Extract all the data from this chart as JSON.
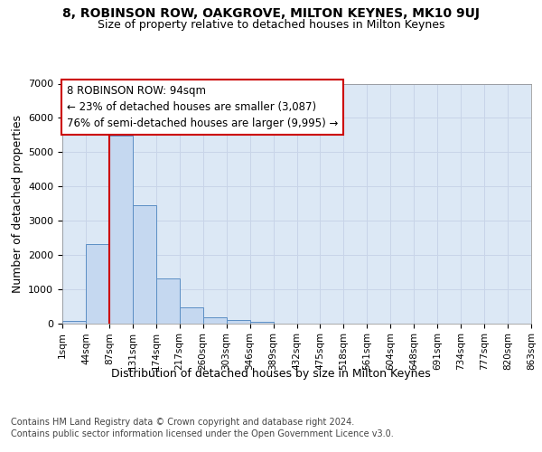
{
  "title": "8, ROBINSON ROW, OAKGROVE, MILTON KEYNES, MK10 9UJ",
  "subtitle": "Size of property relative to detached houses in Milton Keynes",
  "xlabel": "Distribution of detached houses by size in Milton Keynes",
  "ylabel": "Number of detached properties",
  "footer_line1": "Contains HM Land Registry data © Crown copyright and database right 2024.",
  "footer_line2": "Contains public sector information licensed under the Open Government Licence v3.0.",
  "annotation_title": "8 ROBINSON ROW: 94sqm",
  "annotation_line2": "← 23% of detached houses are smaller (3,087)",
  "annotation_line3": "76% of semi-detached houses are larger (9,995) →",
  "bar_values": [
    75,
    2300,
    5480,
    3450,
    1320,
    470,
    165,
    80,
    50,
    0,
    0,
    0,
    0,
    0,
    0,
    0,
    0,
    0,
    0,
    0
  ],
  "bar_color": "#c5d8f0",
  "bar_edge_color": "#5b8ec4",
  "bin_labels": [
    "1sqm",
    "44sqm",
    "87sqm",
    "131sqm",
    "174sqm",
    "217sqm",
    "260sqm",
    "303sqm",
    "346sqm",
    "389sqm",
    "432sqm",
    "475sqm",
    "518sqm",
    "561sqm",
    "604sqm",
    "648sqm",
    "691sqm",
    "734sqm",
    "777sqm",
    "820sqm",
    "863sqm"
  ],
  "ylim": [
    0,
    7000
  ],
  "yticks": [
    0,
    1000,
    2000,
    3000,
    4000,
    5000,
    6000,
    7000
  ],
  "vline_x": 2,
  "vline_color": "#cc0000",
  "grid_color": "#c8d4e8",
  "background_color": "#dce8f5",
  "annotation_box_facecolor": "#ffffff",
  "annotation_box_edgecolor": "#cc0000",
  "title_fontsize": 10,
  "subtitle_fontsize": 9,
  "ylabel_fontsize": 9,
  "xlabel_fontsize": 9,
  "tick_fontsize": 8,
  "xtick_fontsize": 7.5,
  "annotation_fontsize": 8.5,
  "footer_fontsize": 7
}
